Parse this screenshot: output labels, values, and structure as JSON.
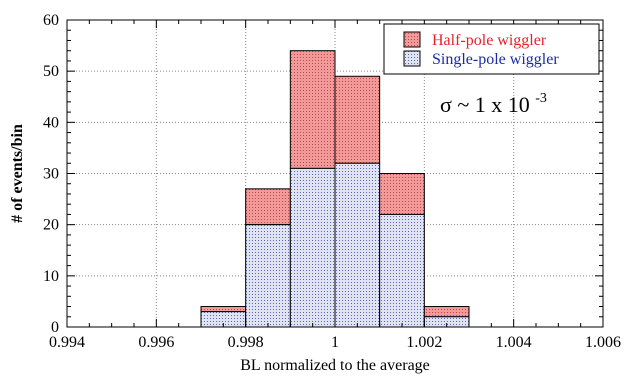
{
  "chart_data": {
    "type": "bar",
    "stacked": true,
    "bin_edges": [
      0.997,
      0.998,
      0.999,
      1.0,
      1.001,
      1.002,
      1.003
    ],
    "series": [
      {
        "name": "Single-pole wiggler",
        "values": [
          3,
          20,
          31,
          32,
          22,
          2
        ],
        "color": "#c8d0e8",
        "text_color": "#1a2aa8"
      },
      {
        "name": "Half-pole wiggler",
        "values": [
          1,
          7,
          23,
          17,
          8,
          2
        ],
        "color": "#f08080",
        "text_color": "#e8202a"
      }
    ],
    "totals": [
      4,
      27,
      54,
      49,
      30,
      4
    ],
    "xlabel": "BL normalized to the average",
    "ylabel": "# of events/bin",
    "xlim": [
      0.994,
      1.006
    ],
    "ylim": [
      0,
      60
    ],
    "x_ticks": [
      "0.994",
      "0.996",
      "0.998",
      "1",
      "1.002",
      "1.004",
      "1.006"
    ],
    "x_tick_values": [
      0.994,
      0.996,
      0.998,
      1.0,
      1.002,
      1.004,
      1.006
    ],
    "y_ticks": [
      "0",
      "10",
      "20",
      "30",
      "40",
      "50",
      "60"
    ],
    "y_tick_values": [
      0,
      10,
      20,
      30,
      40,
      50,
      60
    ],
    "grid": true,
    "legend_position": "top-right",
    "annotation": {
      "base": "σ ~ 1 x 10",
      "exponent": "-3"
    }
  }
}
